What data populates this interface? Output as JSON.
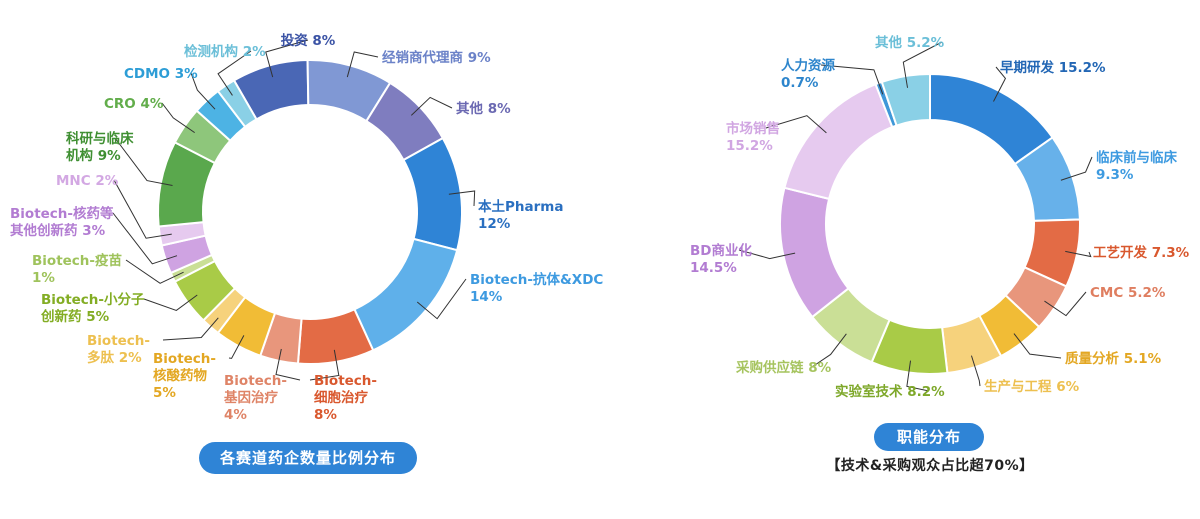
{
  "chart_data": [
    {
      "type": "pie",
      "variant": "donut",
      "title": "各赛道药企数量比例分布",
      "subtitle": "",
      "start_angle_deg": -30,
      "slices": [
        {
          "label": [
            "投资 8%"
          ],
          "value": 8,
          "color": "#4a67b5",
          "text_color": "#3b53a5"
        },
        {
          "label": [
            "经销商代理商 9%"
          ],
          "value": 9,
          "color": "#8098d4",
          "text_color": "#6b82c8"
        },
        {
          "label": [
            "其他 8%"
          ],
          "value": 8,
          "color": "#7f7dbf",
          "text_color": "#6b69b2"
        },
        {
          "label": [
            "本土Pharma",
            "12%"
          ],
          "value": 12,
          "color": "#2f84d6",
          "text_color": "#2a6fc0"
        },
        {
          "label": [
            "Biotech-抗体&XDC",
            "14%"
          ],
          "value": 14,
          "color": "#5fb0ea",
          "text_color": "#3d9ae0"
        },
        {
          "label": [
            "Biotech-",
            "细胞治疗",
            "8%"
          ],
          "value": 8,
          "color": "#e36b45",
          "text_color": "#d9582e"
        },
        {
          "label": [
            "Biotech-",
            "基因治疗",
            "4%"
          ],
          "value": 4,
          "color": "#e8967c",
          "text_color": "#df8467"
        },
        {
          "label": [
            "Biotech-",
            "核酸药物",
            "5%"
          ],
          "value": 5,
          "color": "#f1bc36",
          "text_color": "#e3a722"
        },
        {
          "label": [
            "Biotech-",
            "多肽 2%"
          ],
          "value": 2,
          "color": "#f6d27c",
          "text_color": "#edc050"
        },
        {
          "label": [
            "Biotech-小分子",
            "创新药 5%"
          ],
          "value": 5,
          "color": "#a9cb47",
          "text_color": "#83ad24"
        },
        {
          "label": [
            "Biotech-疫苗",
            "1%"
          ],
          "value": 1,
          "color": "#cadf96",
          "text_color": "#9fc35c"
        },
        {
          "label": [
            "Biotech-核药等",
            "其他创新药 3%"
          ],
          "value": 3,
          "color": "#cfa3e2",
          "text_color": "#b27cd2"
        },
        {
          "label": [
            "MNC 2%"
          ],
          "value": 2,
          "color": "#e6caef",
          "text_color": "#d3a8e3"
        },
        {
          "label": [
            "科研与临床",
            "机构 9%"
          ],
          "value": 9,
          "color": "#5aa84d",
          "text_color": "#3f8f32"
        },
        {
          "label": [
            "CRO 4%"
          ],
          "value": 4,
          "color": "#8ec67b",
          "text_color": "#62ad4b"
        },
        {
          "label": [
            "CDMO 3%"
          ],
          "value": 3,
          "color": "#4db3e4",
          "text_color": "#2d9dd6"
        },
        {
          "label": [
            "检测机构 2%"
          ],
          "value": 2,
          "color": "#8ad0e6",
          "text_color": "#6bbfd8"
        }
      ],
      "pill": {
        "text": "各赛道药企数量比例分布",
        "color": "#2f84d6"
      }
    },
    {
      "type": "pie",
      "variant": "donut",
      "title": "职能分布",
      "subtitle": "【技术&采购观众占比超70%】",
      "start_angle_deg": 0,
      "slices": [
        {
          "label": [
            "早期研发 15.2%"
          ],
          "value": 15.2,
          "color": "#2f84d6",
          "text_color": "#2367b5"
        },
        {
          "label": [
            "临床前与临床",
            "9.3%"
          ],
          "value": 9.3,
          "color": "#67b1ea",
          "text_color": "#3d9ae0"
        },
        {
          "label": [
            "工艺开发 7.3%"
          ],
          "value": 7.3,
          "color": "#e36b45",
          "text_color": "#d9582e"
        },
        {
          "label": [
            "CMC 5.2%"
          ],
          "value": 5.2,
          "color": "#e8967c",
          "text_color": "#df7e60"
        },
        {
          "label": [
            "质量分析 5.1%"
          ],
          "value": 5.1,
          "color": "#f1bc36",
          "text_color": "#e3a722"
        },
        {
          "label": [
            "生产与工程 6%"
          ],
          "value": 6,
          "color": "#f6d27c",
          "text_color": "#edc050"
        },
        {
          "label": [
            "实验室技术 8.2%"
          ],
          "value": 8.2,
          "color": "#a9cb47",
          "text_color": "#7ea82a"
        },
        {
          "label": [
            "采购供应链 8%"
          ],
          "value": 8,
          "color": "#cadf96",
          "text_color": "#a6c45f"
        },
        {
          "label": [
            "BD商业化",
            "14.5%"
          ],
          "value": 14.5,
          "color": "#cfa3e2",
          "text_color": "#b27cd2"
        },
        {
          "label": [
            "市场销售",
            "15.2%"
          ],
          "value": 15.2,
          "color": "#e6caef",
          "text_color": "#d1a6e2"
        },
        {
          "label": [
            "人力资源",
            "0.7%"
          ],
          "value": 0.7,
          "color": "#3f97d8",
          "text_color": "#2d85cc"
        },
        {
          "label": [
            "其他 5.2%"
          ],
          "value": 5.2,
          "color": "#8ad0e6",
          "text_color": "#6bbfd8"
        }
      ],
      "pill": {
        "text": "职能分布",
        "color": "#2f84d6"
      }
    }
  ]
}
